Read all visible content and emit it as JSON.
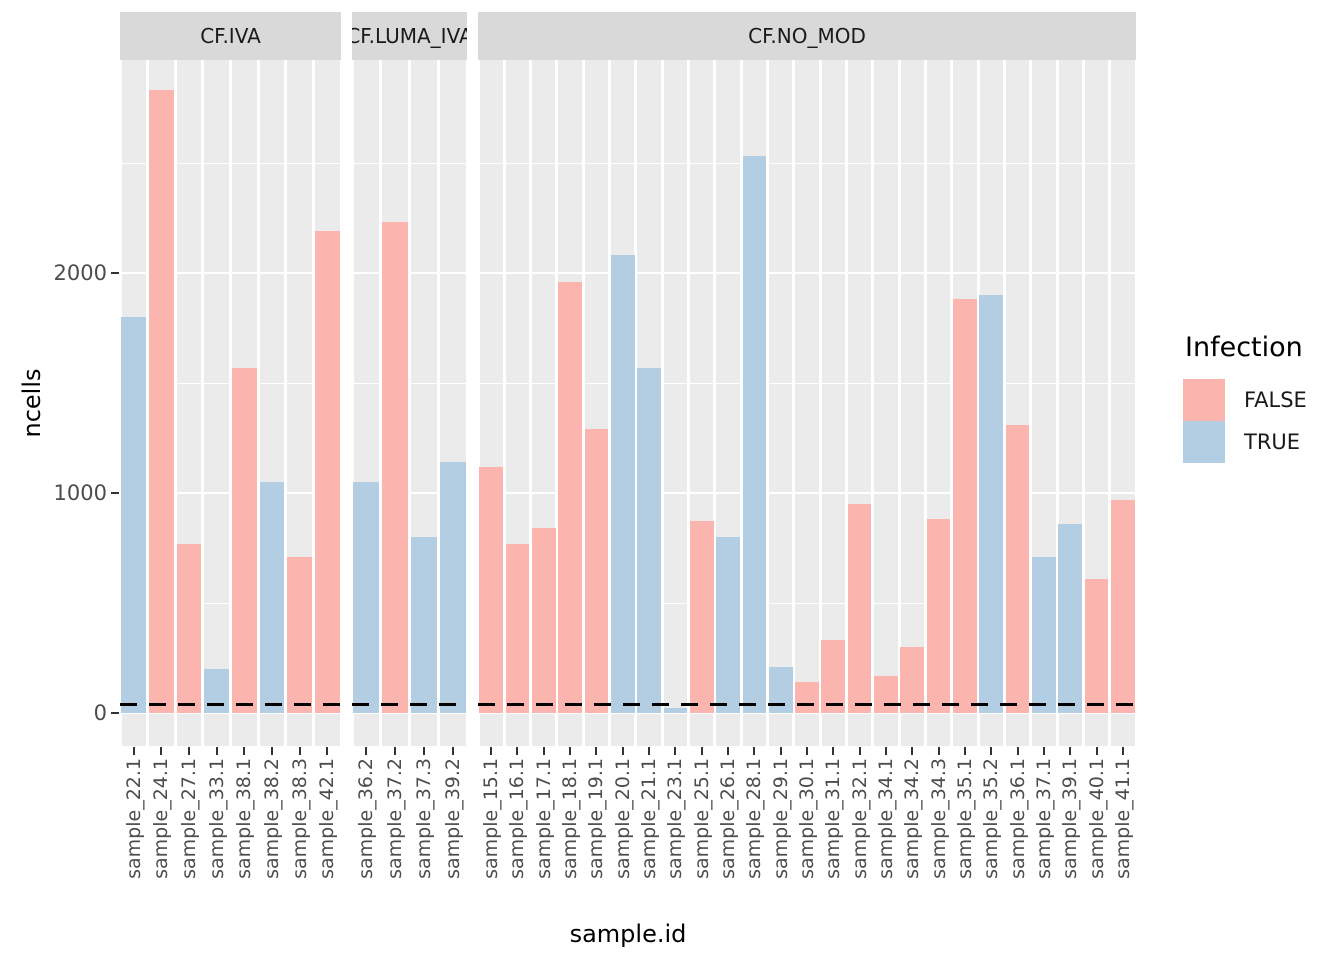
{
  "chart_data": {
    "type": "bar",
    "title": "",
    "xlabel": "sample.id",
    "ylabel": "ncells",
    "y_ticks": [
      0,
      1000,
      2000
    ],
    "y_minor_gridlines": [
      500,
      1500,
      2500
    ],
    "ylim": [
      -150,
      2970
    ],
    "grid": "on",
    "legend": {
      "title": "Infection",
      "position": "right",
      "entries": [
        {
          "label": "FALSE",
          "color": "#FBB4AE"
        },
        {
          "label": "TRUE",
          "color": "#B3CDE3"
        }
      ]
    },
    "threshold_line": {
      "y": 40,
      "style": "dashed",
      "color": "#000000"
    },
    "facets": [
      {
        "label": "CF.IVA",
        "bars": [
          {
            "sample": "sample_22.1",
            "infection": "TRUE",
            "ncells": 1800
          },
          {
            "sample": "sample_24.1",
            "infection": "FALSE",
            "ncells": 2830
          },
          {
            "sample": "sample_27.1",
            "infection": "FALSE",
            "ncells": 770
          },
          {
            "sample": "sample_33.1",
            "infection": "TRUE",
            "ncells": 200
          },
          {
            "sample": "sample_38.1",
            "infection": "FALSE",
            "ncells": 1570
          },
          {
            "sample": "sample_38.2",
            "infection": "TRUE",
            "ncells": 1050
          },
          {
            "sample": "sample_38.3",
            "infection": "FALSE",
            "ncells": 710
          },
          {
            "sample": "sample_42.1",
            "infection": "FALSE",
            "ncells": 2190
          }
        ]
      },
      {
        "label": "CF.LUMA_IVA",
        "bars": [
          {
            "sample": "sample_36.2",
            "infection": "TRUE",
            "ncells": 1050
          },
          {
            "sample": "sample_37.2",
            "infection": "FALSE",
            "ncells": 2230
          },
          {
            "sample": "sample_37.3",
            "infection": "TRUE",
            "ncells": 800
          },
          {
            "sample": "sample_39.2",
            "infection": "TRUE",
            "ncells": 1140
          }
        ]
      },
      {
        "label": "CF.NO_MOD",
        "bars": [
          {
            "sample": "sample_15.1",
            "infection": "FALSE",
            "ncells": 1120
          },
          {
            "sample": "sample_16.1",
            "infection": "FALSE",
            "ncells": 770
          },
          {
            "sample": "sample_17.1",
            "infection": "FALSE",
            "ncells": 840
          },
          {
            "sample": "sample_18.1",
            "infection": "FALSE",
            "ncells": 1960
          },
          {
            "sample": "sample_19.1",
            "infection": "FALSE",
            "ncells": 1290
          },
          {
            "sample": "sample_20.1",
            "infection": "TRUE",
            "ncells": 2080
          },
          {
            "sample": "sample_21.1",
            "infection": "TRUE",
            "ncells": 1570
          },
          {
            "sample": "sample_23.1",
            "infection": "TRUE",
            "ncells": 25
          },
          {
            "sample": "sample_25.1",
            "infection": "FALSE",
            "ncells": 875
          },
          {
            "sample": "sample_26.1",
            "infection": "TRUE",
            "ncells": 800
          },
          {
            "sample": "sample_28.1",
            "infection": "TRUE",
            "ncells": 2530
          },
          {
            "sample": "sample_29.1",
            "infection": "TRUE",
            "ncells": 210
          },
          {
            "sample": "sample_30.1",
            "infection": "FALSE",
            "ncells": 140
          },
          {
            "sample": "sample_31.1",
            "infection": "FALSE",
            "ncells": 330
          },
          {
            "sample": "sample_32.1",
            "infection": "FALSE",
            "ncells": 950
          },
          {
            "sample": "sample_34.1",
            "infection": "FALSE",
            "ncells": 170
          },
          {
            "sample": "sample_34.2",
            "infection": "FALSE",
            "ncells": 300
          },
          {
            "sample": "sample_34.3",
            "infection": "FALSE",
            "ncells": 880
          },
          {
            "sample": "sample_35.1",
            "infection": "FALSE",
            "ncells": 1880
          },
          {
            "sample": "sample_35.2",
            "infection": "TRUE",
            "ncells": 1900
          },
          {
            "sample": "sample_36.1",
            "infection": "FALSE",
            "ncells": 1310
          },
          {
            "sample": "sample_37.1",
            "infection": "TRUE",
            "ncells": 710
          },
          {
            "sample": "sample_39.1",
            "infection": "TRUE",
            "ncells": 860
          },
          {
            "sample": "sample_40.1",
            "infection": "FALSE",
            "ncells": 610
          },
          {
            "sample": "sample_41.1",
            "infection": "FALSE",
            "ncells": 970
          }
        ]
      }
    ]
  },
  "colors": {
    "panel_background": "#EBEBEB",
    "strip_background": "#D9D9D9",
    "gridline": "#FFFFFF",
    "axis_text": "#4D4D4D",
    "tick_mark": "#333333",
    "false_bar": "#FBB4AE",
    "true_bar": "#B3CDE3"
  }
}
